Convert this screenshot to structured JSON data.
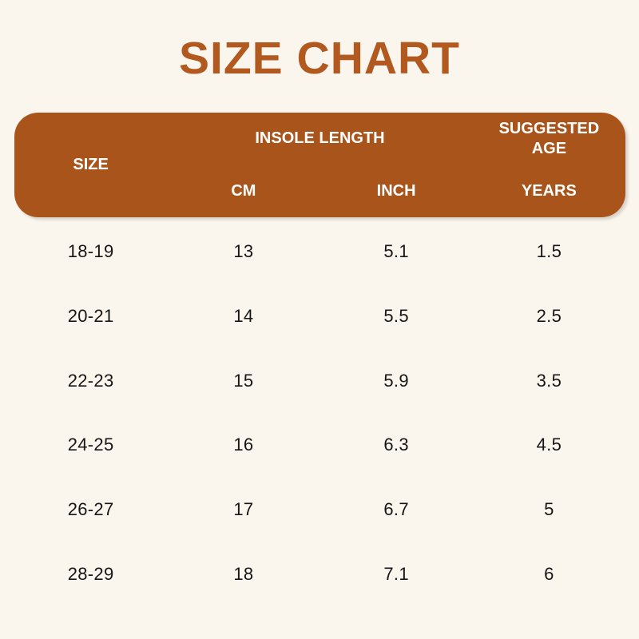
{
  "title": "SIZE CHART",
  "colors": {
    "background": "#FAF6EE",
    "header_band": "#A9541B",
    "title_text": "#B1591F",
    "header_text": "#FFFFFF",
    "cell_text": "#161616"
  },
  "table": {
    "header": {
      "size": "SIZE",
      "insole_length": "INSOLE LENGTH",
      "suggested_line1": "SUGGESTED",
      "suggested_line2": "AGE",
      "cm": "CM",
      "inch": "INCH",
      "years": "YEARS"
    },
    "rows": [
      {
        "size": "18-19",
        "cm": "13",
        "inch": "5.1",
        "years": "1.5"
      },
      {
        "size": "20-21",
        "cm": "14",
        "inch": "5.5",
        "years": "2.5"
      },
      {
        "size": "22-23",
        "cm": "15",
        "inch": "5.9",
        "years": "3.5"
      },
      {
        "size": "24-25",
        "cm": "16",
        "inch": "6.3",
        "years": "4.5"
      },
      {
        "size": "26-27",
        "cm": "17",
        "inch": "6.7",
        "years": "5"
      },
      {
        "size": "28-29",
        "cm": "18",
        "inch": "7.1",
        "years": "6"
      }
    ]
  },
  "chart_data": {
    "type": "table",
    "title": "SIZE CHART",
    "columns": [
      "SIZE",
      "INSOLE LENGTH (CM)",
      "INSOLE LENGTH (INCH)",
      "SUGGESTED AGE (YEARS)"
    ],
    "rows": [
      [
        "18-19",
        13,
        5.1,
        1.5
      ],
      [
        "20-21",
        14,
        5.5,
        2.5
      ],
      [
        "22-23",
        15,
        5.9,
        3.5
      ],
      [
        "24-25",
        16,
        6.3,
        4.5
      ],
      [
        "26-27",
        17,
        6.7,
        5
      ],
      [
        "28-29",
        18,
        7.1,
        6
      ]
    ]
  }
}
